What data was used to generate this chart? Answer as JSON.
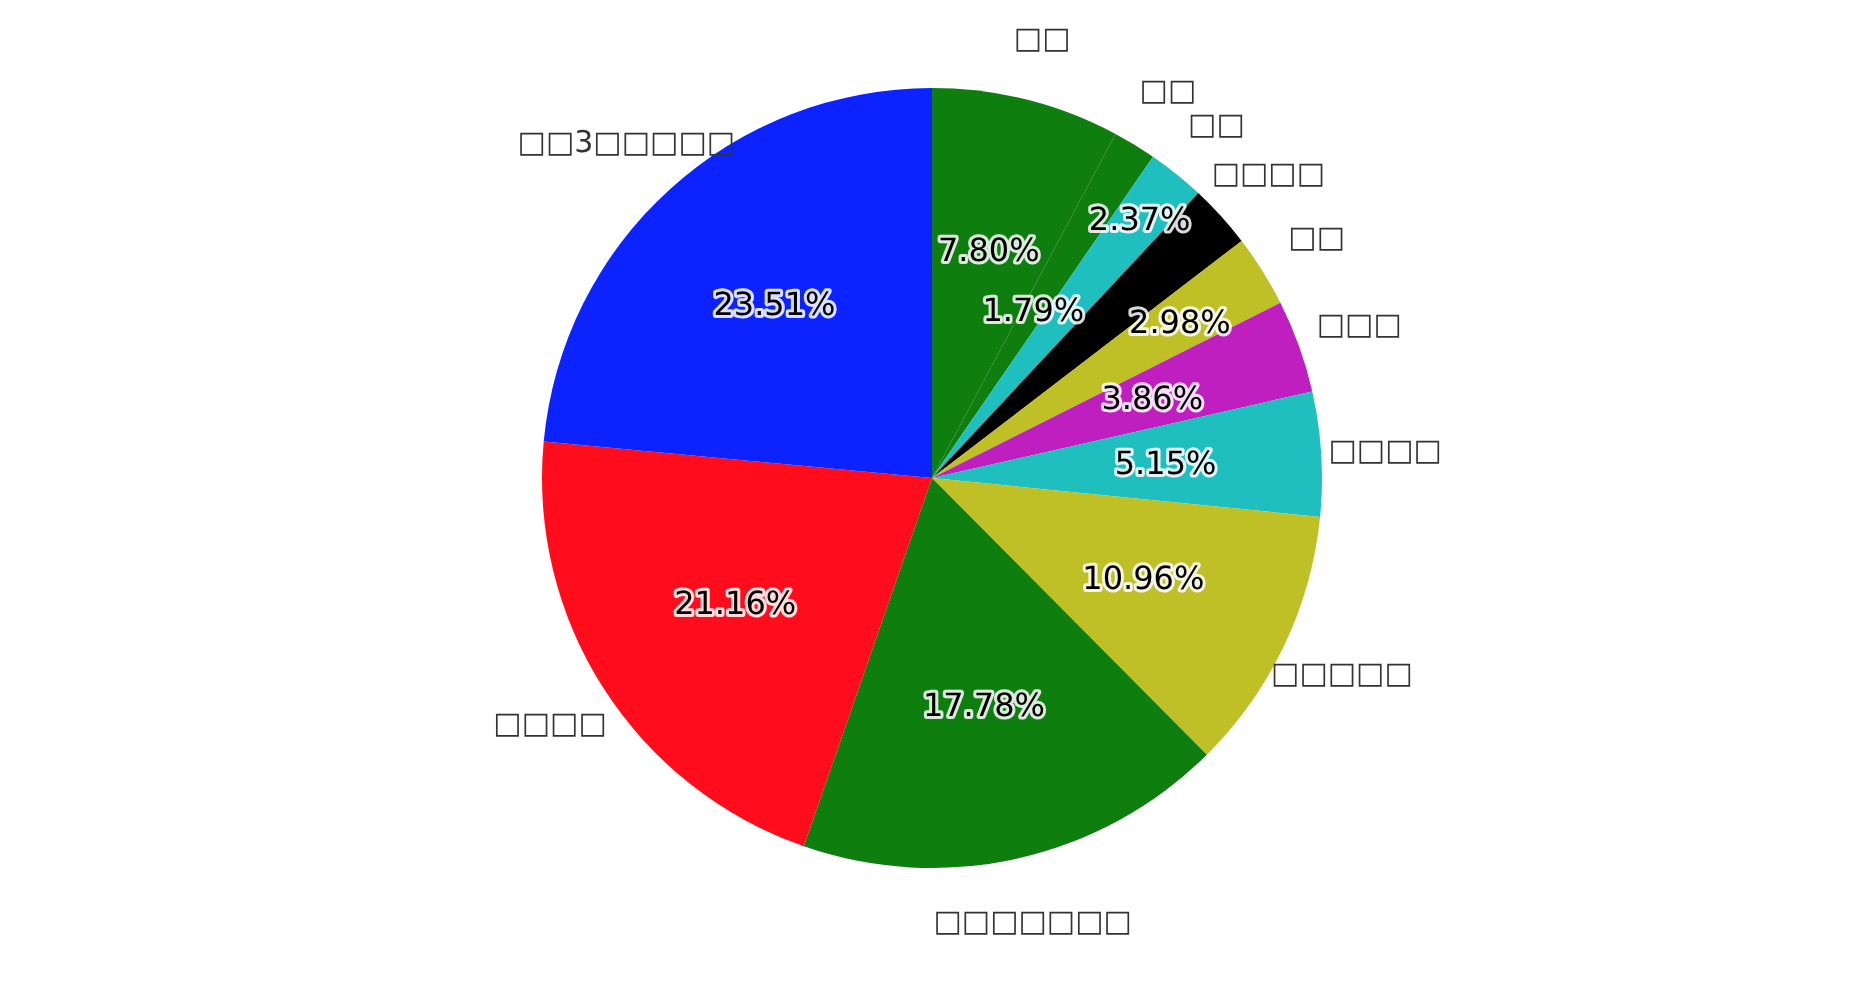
{
  "chart_data": {
    "type": "pie",
    "categories": [
      "□□",
      "□□",
      "□□",
      "□□□□",
      "□□",
      "□□□",
      "□□□□",
      "□□□□□",
      "□□□□□□□",
      "□□□□",
      "□□3□□□□□"
    ],
    "values": [
      7.8,
      1.79,
      2.37,
      2.64,
      2.98,
      3.86,
      5.15,
      10.96,
      17.78,
      21.16,
      23.51
    ],
    "value_labels": [
      "7.80%",
      "1.79%",
      "2.37%",
      null,
      "2.98%",
      "3.86%",
      "5.15%",
      "10.96%",
      "17.78%",
      "21.16%",
      "23.51%"
    ],
    "colors": [
      "#0e7e0e",
      "#0e7e0e",
      "#1fbfbf",
      "#000000",
      "#bfbf26",
      "#bf1fbf",
      "#1fbfbf",
      "#bfbf26",
      "#0e7e0e",
      "#ff0d1d",
      "#0c22ff"
    ]
  }
}
